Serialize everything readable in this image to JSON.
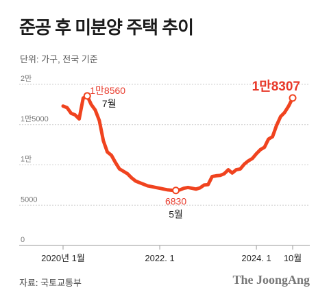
{
  "title": "준공 후 미분양 주택 추이",
  "unit_note": "단위: 가구, 전국 기준",
  "source": "자료: 국토교통부",
  "logo": "The JoongAng",
  "colors": {
    "line": "#f0431f",
    "grid": "#cccccc",
    "axis": "#999999"
  },
  "chart_data": {
    "type": "line",
    "title": "준공 후 미분양 주택 추이",
    "xlabel": "",
    "ylabel": "",
    "ylim": [
      0,
      20000
    ],
    "y_ticks": [
      {
        "value": 20000,
        "label": "2만"
      },
      {
        "value": 15000,
        "label": "1만5000"
      },
      {
        "value": 10000,
        "label": "1만"
      },
      {
        "value": 5000,
        "label": "5000"
      },
      {
        "value": 0,
        "label": "0"
      }
    ],
    "x_ticks": [
      {
        "x": "2020-01",
        "label": "2020년 1월"
      },
      {
        "x": "2022-01",
        "label": "2022. 1"
      },
      {
        "x": "2024-01",
        "label": "2024. 1"
      },
      {
        "x": "2024-10",
        "label": "10월"
      }
    ],
    "series": [
      {
        "values": [
          [
            "2020-01",
            17300
          ],
          [
            "2020-02",
            17100
          ],
          [
            "2020-03",
            16400
          ],
          [
            "2020-04",
            16200
          ],
          [
            "2020-05",
            15700
          ],
          [
            "2020-06",
            18300
          ],
          [
            "2020-07",
            18560
          ],
          [
            "2020-08",
            17500
          ],
          [
            "2020-09",
            16800
          ],
          [
            "2020-10",
            15500
          ],
          [
            "2020-11",
            13000
          ],
          [
            "2020-12",
            11600
          ],
          [
            "2021-01",
            11200
          ],
          [
            "2021-02",
            10300
          ],
          [
            "2021-03",
            9500
          ],
          [
            "2021-04",
            9200
          ],
          [
            "2021-05",
            8900
          ],
          [
            "2021-06",
            8400
          ],
          [
            "2021-07",
            8000
          ],
          [
            "2021-08",
            7800
          ],
          [
            "2021-09",
            7600
          ],
          [
            "2021-10",
            7400
          ],
          [
            "2021-11",
            7300
          ],
          [
            "2021-12",
            7200
          ],
          [
            "2022-01",
            7100
          ],
          [
            "2022-02",
            7000
          ],
          [
            "2022-03",
            6900
          ],
          [
            "2022-04",
            6850
          ],
          [
            "2022-05",
            6830
          ],
          [
            "2022-06",
            6900
          ],
          [
            "2022-07",
            7100
          ],
          [
            "2022-08",
            7200
          ],
          [
            "2022-09",
            7100
          ],
          [
            "2022-10",
            7000
          ],
          [
            "2022-11",
            7150
          ],
          [
            "2022-12",
            7500
          ],
          [
            "2023-01",
            7550
          ],
          [
            "2023-02",
            8550
          ],
          [
            "2023-03",
            8650
          ],
          [
            "2023-04",
            8700
          ],
          [
            "2023-05",
            8900
          ],
          [
            "2023-06",
            9400
          ],
          [
            "2023-07",
            9000
          ],
          [
            "2023-08",
            9400
          ],
          [
            "2023-09",
            9500
          ],
          [
            "2023-10",
            10100
          ],
          [
            "2023-11",
            10500
          ],
          [
            "2023-12",
            10800
          ],
          [
            "2024-01",
            11400
          ],
          [
            "2024-02",
            11900
          ],
          [
            "2024-03",
            12200
          ],
          [
            "2024-04",
            13200
          ],
          [
            "2024-05",
            13500
          ],
          [
            "2024-06",
            14900
          ],
          [
            "2024-07",
            16000
          ],
          [
            "2024-08",
            16500
          ],
          [
            "2024-09",
            17300
          ],
          [
            "2024-10",
            18307
          ]
        ]
      }
    ],
    "annotations": [
      {
        "x": "2020-07",
        "value_label": "1만8560",
        "date_label": "7월"
      },
      {
        "x": "2022-05",
        "value_label": "6830",
        "date_label": "5월"
      },
      {
        "x": "2024-10",
        "value_label": "1만8307",
        "date_label": ""
      }
    ]
  }
}
